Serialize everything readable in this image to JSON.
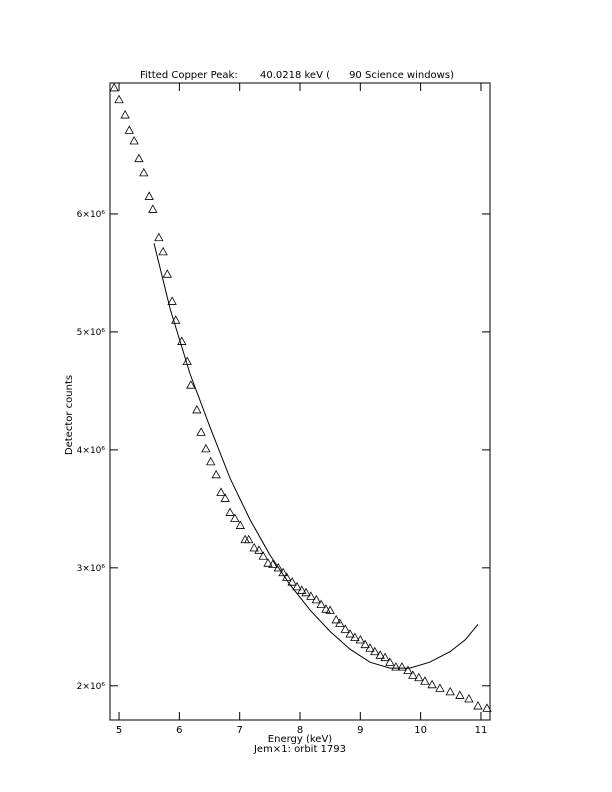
{
  "chart_data": {
    "type": "scatter",
    "title": "Fitted Copper Peak:       40.0218 keV (      90 Science windows)",
    "x_label": "Energy (keV)",
    "subtitle": "Jem×1: orbit 1793",
    "y_label": "Detector counts",
    "xlim": [
      4.85,
      11.15
    ],
    "xticks": [
      5,
      6,
      7,
      8,
      9,
      10,
      11
    ],
    "ylim": [
      1710000,
      7110000
    ],
    "yticks": [
      {
        "value": 2000000,
        "label": "2×10⁶"
      },
      {
        "value": 3000000,
        "label": "3×10⁶"
      },
      {
        "value": 4000000,
        "label": "4×10⁶"
      },
      {
        "value": 5000000,
        "label": "5×10⁶"
      },
      {
        "value": 6000000,
        "label": "6×10⁶"
      }
    ],
    "grid": false,
    "series": [
      {
        "type": "scatter",
        "color": "#000000",
        "x": [
          4.92,
          5.0,
          5.1,
          5.17,
          5.25,
          5.33,
          5.41,
          5.5,
          5.56,
          5.66,
          5.73,
          5.8,
          5.88,
          5.94,
          6.04,
          6.13,
          6.19,
          6.29,
          6.36,
          6.44,
          6.52,
          6.61,
          6.69,
          6.76,
          6.84,
          6.92,
          7.01,
          7.09,
          7.15,
          7.24,
          7.32,
          7.39,
          7.47,
          7.55,
          7.64,
          7.72,
          7.78,
          7.87,
          7.95,
          8.03,
          8.1,
          8.18,
          8.27,
          8.35,
          8.43,
          8.5,
          8.6,
          8.66,
          8.75,
          8.83,
          8.91,
          9.0,
          9.08,
          9.16,
          9.24,
          9.33,
          9.41,
          9.49,
          9.59,
          9.69,
          9.79,
          9.87,
          9.97,
          10.07,
          10.19,
          10.32,
          10.49,
          10.65,
          10.8,
          10.95,
          11.1
        ],
        "values": [
          7070000,
          6970000,
          6840000,
          6710000,
          6620000,
          6470000,
          6350000,
          6150000,
          6040000,
          5800000,
          5680000,
          5490000,
          5260000,
          5100000,
          4920000,
          4750000,
          4550000,
          4340000,
          4150000,
          4010000,
          3900000,
          3790000,
          3640000,
          3590000,
          3470000,
          3420000,
          3360000,
          3240000,
          3240000,
          3170000,
          3150000,
          3100000,
          3040000,
          3030000,
          3000000,
          2960000,
          2920000,
          2880000,
          2840000,
          2810000,
          2790000,
          2760000,
          2730000,
          2690000,
          2650000,
          2640000,
          2560000,
          2530000,
          2480000,
          2440000,
          2410000,
          2390000,
          2350000,
          2320000,
          2290000,
          2260000,
          2240000,
          2200000,
          2160000,
          2160000,
          2130000,
          2090000,
          2070000,
          2040000,
          2010000,
          1980000,
          1950000,
          1920000,
          1890000,
          1830000,
          1810000
        ]
      },
      {
        "type": "line",
        "color": "#000000",
        "x": [
          5.58,
          5.85,
          6.18,
          6.51,
          6.84,
          7.17,
          7.5,
          7.83,
          8.17,
          8.5,
          8.83,
          9.16,
          9.49,
          9.82,
          10.15,
          10.49,
          10.74,
          10.95
        ],
        "values": [
          5750000,
          5190000,
          4640000,
          4190000,
          3760000,
          3410000,
          3110000,
          2860000,
          2640000,
          2460000,
          2310000,
          2200000,
          2150000,
          2150000,
          2200000,
          2290000,
          2390000,
          2520000
        ]
      }
    ]
  }
}
